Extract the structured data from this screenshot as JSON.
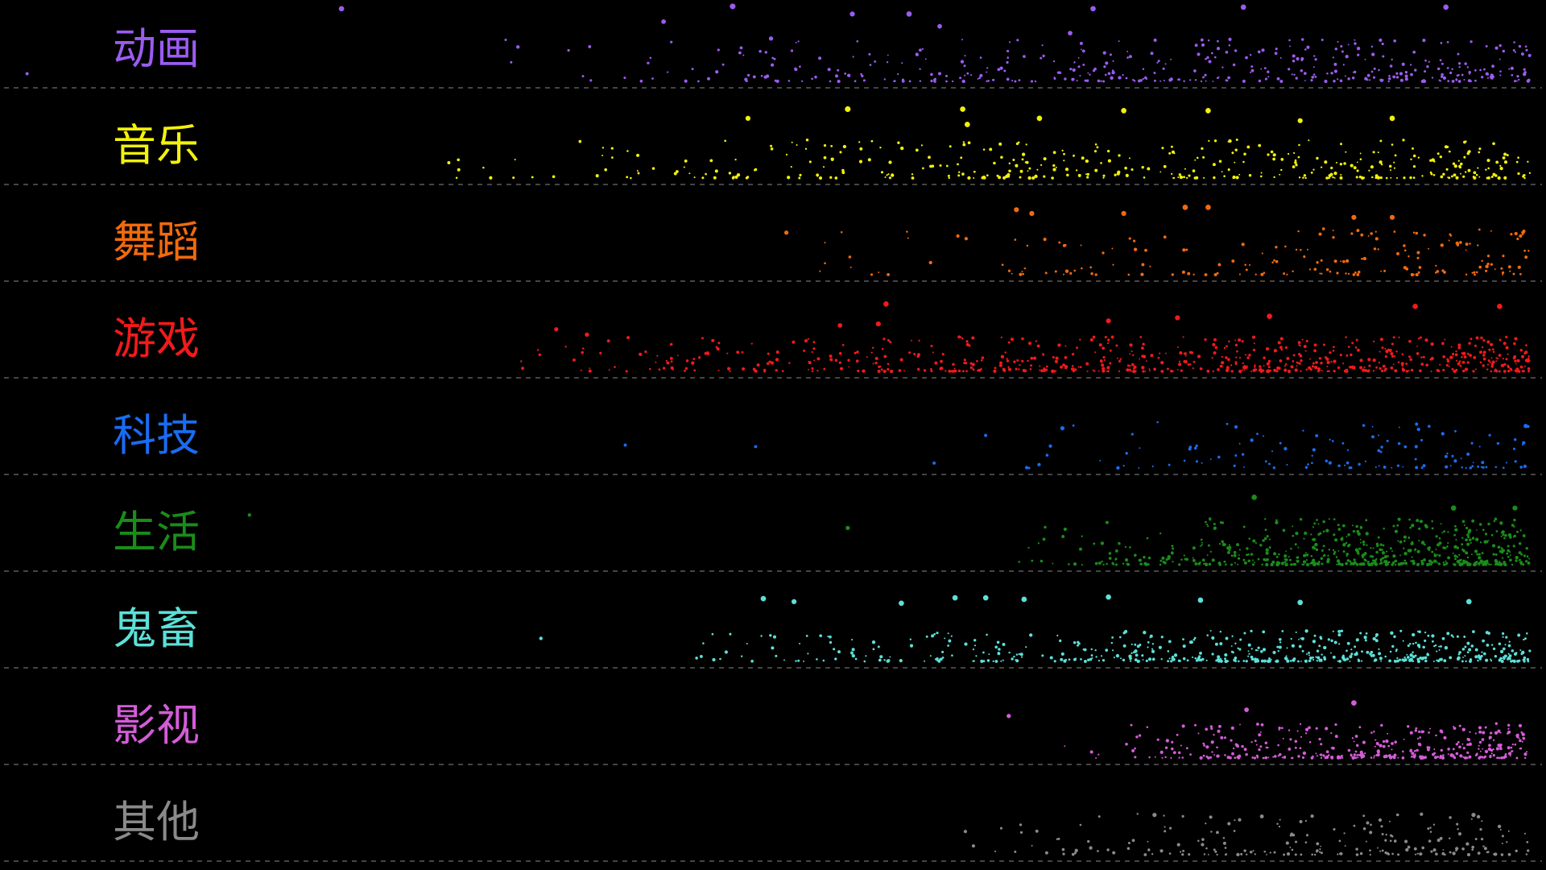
{
  "chart_data": {
    "type": "scatter",
    "background": "#000000",
    "baseline_color": "#8a8a8a",
    "baseline_style": "dashed",
    "x_range": [
      0,
      100
    ],
    "y_range": [
      0,
      1
    ],
    "point_value_range": [
      0,
      1
    ],
    "series": [
      {
        "name": "动画",
        "color": "#9a5cf0",
        "density": 1.0,
        "start": 31,
        "peak": 0.55,
        "points": [
          {
            "x": 1.5,
            "y": 0.1,
            "v": 0.2
          },
          {
            "x": 22.0,
            "y": 0.95,
            "v": 0.8
          },
          {
            "x": 33.5,
            "y": 0.45,
            "v": 0.3
          },
          {
            "x": 43.0,
            "y": 0.78,
            "v": 0.6
          },
          {
            "x": 47.5,
            "y": 0.98,
            "v": 0.9
          },
          {
            "x": 50.0,
            "y": 0.56,
            "v": 0.5
          },
          {
            "x": 55.3,
            "y": 0.88,
            "v": 0.7
          },
          {
            "x": 59.0,
            "y": 0.88,
            "v": 0.8
          },
          {
            "x": 61.0,
            "y": 0.72,
            "v": 0.6
          },
          {
            "x": 69.5,
            "y": 0.63,
            "v": 0.6
          },
          {
            "x": 71.0,
            "y": 0.95,
            "v": 0.8
          },
          {
            "x": 80.8,
            "y": 0.97,
            "v": 0.8
          },
          {
            "x": 94.0,
            "y": 0.97,
            "v": 0.8
          }
        ]
      },
      {
        "name": "音乐",
        "color": "#f2f20c",
        "density": 0.95,
        "start": 27,
        "peak": 0.5,
        "points": [
          {
            "x": 29.0,
            "y": 0.2,
            "v": 0.2
          },
          {
            "x": 48.5,
            "y": 0.78,
            "v": 0.7
          },
          {
            "x": 55.0,
            "y": 0.9,
            "v": 0.9
          },
          {
            "x": 62.5,
            "y": 0.9,
            "v": 0.8
          },
          {
            "x": 62.8,
            "y": 0.7,
            "v": 0.8
          },
          {
            "x": 67.5,
            "y": 0.78,
            "v": 0.8
          },
          {
            "x": 73.0,
            "y": 0.88,
            "v": 0.8
          },
          {
            "x": 78.5,
            "y": 0.88,
            "v": 0.8
          },
          {
            "x": 84.5,
            "y": 0.75,
            "v": 0.7
          },
          {
            "x": 90.5,
            "y": 0.78,
            "v": 0.8
          }
        ]
      },
      {
        "name": "舞蹈",
        "color": "#f26a0c",
        "density": 0.45,
        "start": 50,
        "peak": 0.6,
        "points": [
          {
            "x": 51.0,
            "y": 0.55,
            "v": 0.5
          },
          {
            "x": 66.0,
            "y": 0.85,
            "v": 0.7
          },
          {
            "x": 67.0,
            "y": 0.8,
            "v": 0.7
          },
          {
            "x": 73.0,
            "y": 0.8,
            "v": 0.7
          },
          {
            "x": 77.0,
            "y": 0.88,
            "v": 0.8
          },
          {
            "x": 78.5,
            "y": 0.88,
            "v": 0.8
          },
          {
            "x": 88.0,
            "y": 0.75,
            "v": 0.7
          },
          {
            "x": 90.5,
            "y": 0.75,
            "v": 0.7
          }
        ]
      },
      {
        "name": "游戏",
        "color": "#f21a1a",
        "density": 1.6,
        "start": 32,
        "peak": 0.45,
        "points": [
          {
            "x": 36.0,
            "y": 0.55,
            "v": 0.5
          },
          {
            "x": 38.0,
            "y": 0.48,
            "v": 0.5
          },
          {
            "x": 54.5,
            "y": 0.6,
            "v": 0.6
          },
          {
            "x": 57.0,
            "y": 0.62,
            "v": 0.7
          },
          {
            "x": 57.5,
            "y": 0.88,
            "v": 0.8
          },
          {
            "x": 72.0,
            "y": 0.66,
            "v": 0.7
          },
          {
            "x": 76.5,
            "y": 0.7,
            "v": 0.7
          },
          {
            "x": 82.5,
            "y": 0.72,
            "v": 0.8
          },
          {
            "x": 92.0,
            "y": 0.85,
            "v": 0.8
          },
          {
            "x": 97.5,
            "y": 0.85,
            "v": 0.8
          }
        ]
      },
      {
        "name": "科技",
        "color": "#1a6cf2",
        "density": 0.3,
        "start": 60,
        "peak": 0.6,
        "points": [
          {
            "x": 40.5,
            "y": 0.3,
            "v": 0.2
          },
          {
            "x": 49.0,
            "y": 0.28,
            "v": 0.2
          },
          {
            "x": 69.0,
            "y": 0.52,
            "v": 0.5
          },
          {
            "x": 99.2,
            "y": 0.55,
            "v": 0.5
          }
        ]
      },
      {
        "name": "生活",
        "color": "#1a8c1a",
        "density": 1.5,
        "start": 66,
        "peak": 0.6,
        "points": [
          {
            "x": 16.0,
            "y": 0.65,
            "v": 0.3
          },
          {
            "x": 55.0,
            "y": 0.48,
            "v": 0.5
          },
          {
            "x": 81.5,
            "y": 0.88,
            "v": 0.8
          },
          {
            "x": 94.5,
            "y": 0.74,
            "v": 0.8
          },
          {
            "x": 98.5,
            "y": 0.74,
            "v": 0.7
          }
        ]
      },
      {
        "name": "鬼畜",
        "color": "#5ce0d8",
        "density": 1.3,
        "start": 44,
        "peak": 0.4,
        "points": [
          {
            "x": 35.0,
            "y": 0.3,
            "v": 0.3
          },
          {
            "x": 49.5,
            "y": 0.82,
            "v": 0.8
          },
          {
            "x": 51.5,
            "y": 0.78,
            "v": 0.7
          },
          {
            "x": 58.5,
            "y": 0.76,
            "v": 0.8
          },
          {
            "x": 62.0,
            "y": 0.83,
            "v": 0.8
          },
          {
            "x": 64.0,
            "y": 0.83,
            "v": 0.8
          },
          {
            "x": 66.5,
            "y": 0.81,
            "v": 0.8
          },
          {
            "x": 72.0,
            "y": 0.84,
            "v": 0.8
          },
          {
            "x": 78.0,
            "y": 0.8,
            "v": 0.8
          },
          {
            "x": 84.5,
            "y": 0.77,
            "v": 0.8
          },
          {
            "x": 95.5,
            "y": 0.78,
            "v": 0.8
          }
        ]
      },
      {
        "name": "影视",
        "color": "#d45cd8",
        "density": 0.9,
        "start": 69,
        "peak": 0.45,
        "points": [
          {
            "x": 65.5,
            "y": 0.55,
            "v": 0.5
          },
          {
            "x": 81.0,
            "y": 0.63,
            "v": 0.6
          },
          {
            "x": 88.0,
            "y": 0.72,
            "v": 0.8
          }
        ]
      },
      {
        "name": "其他",
        "color": "#8a8a8a",
        "density": 0.5,
        "start": 62,
        "peak": 0.55,
        "points": [
          {
            "x": 75.0,
            "y": 0.52,
            "v": 0.5
          },
          {
            "x": 82.0,
            "y": 0.5,
            "v": 0.4
          },
          {
            "x": 95.8,
            "y": 0.52,
            "v": 0.5
          }
        ]
      }
    ]
  }
}
